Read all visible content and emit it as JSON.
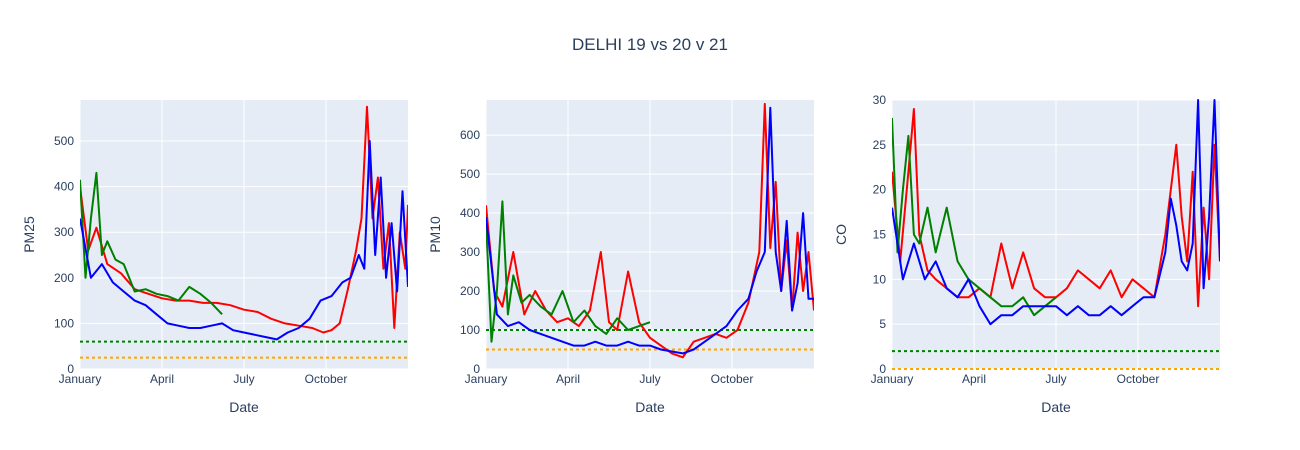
{
  "title": "DELHI 19 vs 20 v 21",
  "colors": {
    "plot_bg": "#e5ecf6",
    "grid": "#ffffff",
    "text": "#2a3f5f",
    "y2019": "#ff0000",
    "y2020": "#008000",
    "y2021": "#0000ff",
    "guide_green": "#008000",
    "guide_orange": "#ffa500"
  },
  "chart_data": [
    {
      "type": "line",
      "xlabel": "Date",
      "ylabel": "PM25",
      "x_ticks": [
        "January",
        "April",
        "July",
        "October"
      ],
      "x_tick_months": [
        0,
        3,
        6,
        9
      ],
      "xlim_months": [
        0,
        12
      ],
      "ylim": [
        0,
        590
      ],
      "y_ticks": [
        0,
        100,
        200,
        300,
        400,
        500
      ],
      "reference_lines": [
        {
          "y": 60,
          "color": "green",
          "style": "dotted"
        },
        {
          "y": 25,
          "color": "orange",
          "style": "dotted"
        }
      ],
      "series": [
        {
          "color": "red",
          "x_months": [
            0,
            0.3,
            0.6,
            1,
            1.5,
            2,
            2.5,
            3,
            3.5,
            4,
            4.5,
            5,
            5.5,
            6,
            6.5,
            7,
            7.5,
            8,
            8.5,
            8.9,
            9.2,
            9.5,
            9.8,
            10.1,
            10.3,
            10.5,
            10.7,
            10.9,
            11.1,
            11.3,
            11.5,
            11.7,
            11.9,
            12
          ],
          "values": [
            400,
            260,
            310,
            230,
            210,
            175,
            165,
            155,
            150,
            150,
            145,
            145,
            140,
            130,
            125,
            110,
            100,
            95,
            90,
            80,
            85,
            100,
            175,
            260,
            330,
            575,
            330,
            420,
            220,
            320,
            90,
            300,
            220,
            360
          ]
        },
        {
          "color": "green",
          "x_months": [
            0,
            0.2,
            0.4,
            0.6,
            0.8,
            1,
            1.3,
            1.6,
            2,
            2.4,
            2.8,
            3.2,
            3.6,
            4,
            4.4,
            4.8,
            5.2
          ],
          "values": [
            415,
            200,
            330,
            430,
            250,
            280,
            240,
            230,
            170,
            175,
            165,
            160,
            150,
            180,
            165,
            145,
            120
          ]
        },
        {
          "color": "blue",
          "x_months": [
            0,
            0.4,
            0.8,
            1.2,
            1.6,
            2,
            2.4,
            2.8,
            3.2,
            3.6,
            4,
            4.4,
            4.8,
            5.2,
            5.6,
            6,
            6.4,
            6.8,
            7.2,
            7.6,
            8,
            8.4,
            8.8,
            9.2,
            9.6,
            9.9,
            10.2,
            10.4,
            10.6,
            10.8,
            11,
            11.2,
            11.4,
            11.6,
            11.8,
            12
          ],
          "values": [
            330,
            200,
            230,
            190,
            170,
            150,
            140,
            120,
            100,
            95,
            90,
            90,
            95,
            100,
            85,
            80,
            75,
            70,
            65,
            80,
            90,
            110,
            150,
            160,
            190,
            200,
            250,
            220,
            500,
            250,
            420,
            200,
            320,
            170,
            390,
            180
          ]
        }
      ]
    },
    {
      "type": "line",
      "xlabel": "Date",
      "ylabel": "PM10",
      "x_ticks": [
        "January",
        "April",
        "July",
        "October"
      ],
      "x_tick_months": [
        0,
        3,
        6,
        9
      ],
      "xlim_months": [
        0,
        12
      ],
      "ylim": [
        0,
        690
      ],
      "y_ticks": [
        0,
        100,
        200,
        300,
        400,
        500,
        600
      ],
      "reference_lines": [
        {
          "y": 100,
          "color": "green",
          "style": "dotted"
        },
        {
          "y": 50,
          "color": "orange",
          "style": "dotted"
        }
      ],
      "series": [
        {
          "color": "red",
          "x_months": [
            0,
            0.3,
            0.6,
            1,
            1.4,
            1.8,
            2.2,
            2.6,
            3,
            3.4,
            3.8,
            4.2,
            4.5,
            4.8,
            5.2,
            5.6,
            6,
            6.4,
            6.8,
            7.2,
            7.6,
            8,
            8.4,
            8.8,
            9.2,
            9.6,
            10,
            10.2,
            10.4,
            10.6,
            10.8,
            11,
            11.2,
            11.4,
            11.6,
            11.8,
            12
          ],
          "values": [
            420,
            200,
            160,
            300,
            140,
            200,
            150,
            120,
            130,
            110,
            150,
            300,
            120,
            100,
            250,
            120,
            80,
            60,
            40,
            30,
            70,
            80,
            90,
            80,
            100,
            170,
            300,
            680,
            310,
            480,
            200,
            330,
            150,
            350,
            200,
            300,
            150
          ]
        },
        {
          "color": "green",
          "x_months": [
            0,
            0.2,
            0.4,
            0.6,
            0.8,
            1,
            1.3,
            1.6,
            2,
            2.4,
            2.8,
            3.2,
            3.6,
            4,
            4.4,
            4.8,
            5.2,
            5.6,
            6
          ],
          "values": [
            380,
            70,
            200,
            430,
            140,
            240,
            170,
            190,
            160,
            140,
            200,
            120,
            150,
            110,
            90,
            130,
            100,
            110,
            120
          ]
        },
        {
          "color": "blue",
          "x_months": [
            0,
            0.4,
            0.8,
            1.2,
            1.6,
            2,
            2.4,
            2.8,
            3.2,
            3.6,
            4,
            4.4,
            4.8,
            5.2,
            5.6,
            6,
            6.4,
            6.8,
            7.2,
            7.6,
            8,
            8.4,
            8.8,
            9.2,
            9.6,
            9.9,
            10.2,
            10.4,
            10.6,
            10.8,
            11,
            11.2,
            11.4,
            11.6,
            11.8,
            12
          ],
          "values": [
            390,
            140,
            110,
            120,
            100,
            90,
            80,
            70,
            60,
            60,
            70,
            60,
            60,
            70,
            60,
            60,
            50,
            45,
            40,
            50,
            70,
            90,
            110,
            150,
            180,
            250,
            300,
            670,
            300,
            200,
            380,
            150,
            220,
            400,
            180,
            180
          ]
        }
      ]
    },
    {
      "type": "line",
      "xlabel": "Date",
      "ylabel": "CO",
      "x_ticks": [
        "January",
        "April",
        "July",
        "October"
      ],
      "x_tick_months": [
        0,
        3,
        6,
        9
      ],
      "xlim_months": [
        0,
        12
      ],
      "ylim": [
        0,
        30
      ],
      "y_ticks": [
        0,
        5,
        10,
        15,
        20,
        25,
        30
      ],
      "reference_lines": [
        {
          "y": 2,
          "color": "green",
          "style": "dotted"
        },
        {
          "y": 0,
          "color": "orange",
          "style": "dotted"
        }
      ],
      "series": [
        {
          "color": "red",
          "x_months": [
            0,
            0.3,
            0.6,
            0.8,
            1,
            1.3,
            1.6,
            2,
            2.4,
            2.8,
            3.2,
            3.6,
            4,
            4.4,
            4.8,
            5.2,
            5.6,
            6,
            6.4,
            6.8,
            7.2,
            7.6,
            8,
            8.4,
            8.8,
            9.2,
            9.6,
            10,
            10.2,
            10.4,
            10.6,
            10.8,
            11,
            11.2,
            11.4,
            11.6,
            11.8,
            12
          ],
          "values": [
            22,
            12,
            22,
            29,
            15,
            11,
            10,
            9,
            8,
            8,
            9,
            8,
            14,
            9,
            13,
            9,
            8,
            8,
            9,
            11,
            10,
            9,
            11,
            8,
            10,
            9,
            8,
            15,
            20,
            25,
            17,
            12,
            22,
            7,
            18,
            10,
            25,
            12
          ]
        },
        {
          "color": "green",
          "x_months": [
            0,
            0.2,
            0.4,
            0.6,
            0.8,
            1,
            1.3,
            1.6,
            2,
            2.4,
            2.8,
            3.2,
            3.6,
            4,
            4.4,
            4.8,
            5.2,
            5.6,
            6
          ],
          "values": [
            28,
            13,
            20,
            26,
            15,
            14,
            18,
            13,
            18,
            12,
            10,
            9,
            8,
            7,
            7,
            8,
            6,
            7,
            8
          ]
        },
        {
          "color": "blue",
          "x_months": [
            0,
            0.4,
            0.8,
            1.2,
            1.6,
            2,
            2.4,
            2.8,
            3.2,
            3.6,
            4,
            4.4,
            4.8,
            5.2,
            5.6,
            6,
            6.4,
            6.8,
            7.2,
            7.6,
            8,
            8.4,
            8.8,
            9.2,
            9.6,
            10,
            10.2,
            10.4,
            10.6,
            10.8,
            11,
            11.2,
            11.4,
            11.6,
            11.8,
            12
          ],
          "values": [
            18,
            10,
            14,
            10,
            12,
            9,
            8,
            10,
            7,
            5,
            6,
            6,
            7,
            7,
            7,
            7,
            6,
            7,
            6,
            6,
            7,
            6,
            7,
            8,
            8,
            13,
            19,
            16,
            12,
            11,
            14,
            30,
            9,
            17,
            30,
            12
          ]
        }
      ]
    }
  ]
}
